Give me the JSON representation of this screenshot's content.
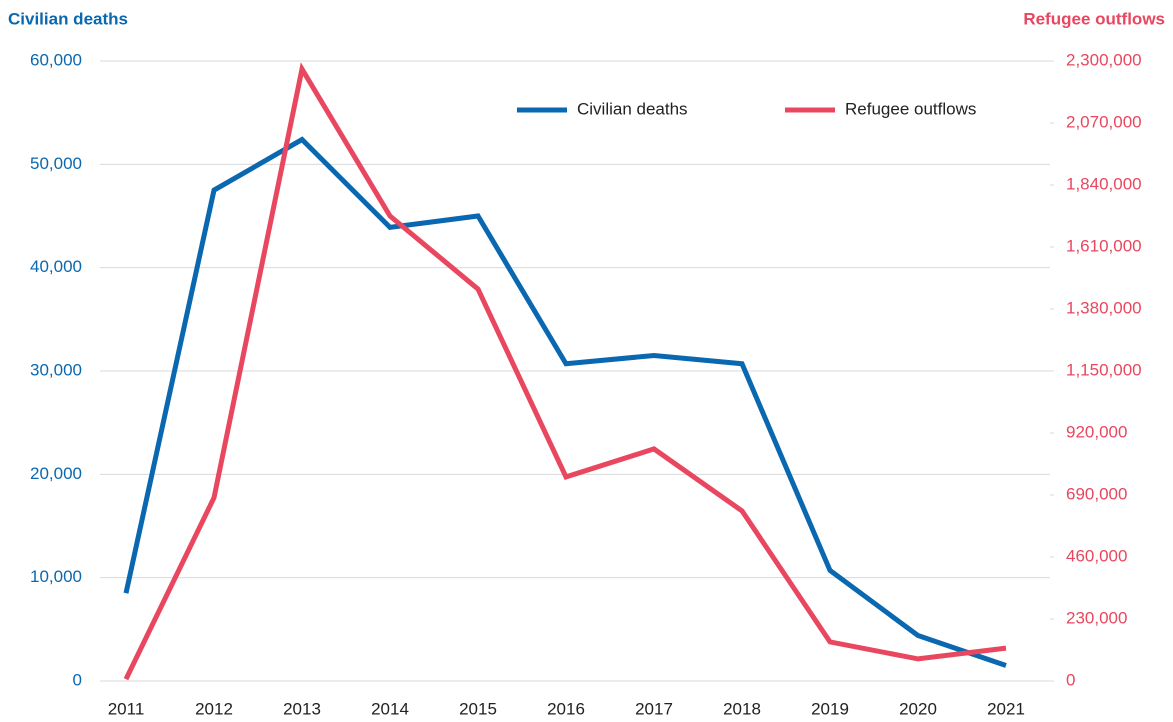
{
  "chart_data": {
    "type": "line",
    "y_axis_title": "Civilian deaths",
    "y2_axis_title": "Refugee outflows",
    "categories": [
      "2011",
      "2012",
      "2013",
      "2014",
      "2015",
      "2016",
      "2017",
      "2018",
      "2019",
      "2020",
      "2021"
    ],
    "series": [
      {
        "name": "Civilian deaths",
        "color": "#0a68b0",
        "values": [
          8500,
          47500,
          52400,
          43900,
          45000,
          30700,
          31500,
          30700,
          10700,
          4400,
          1500
        ]
      },
      {
        "name": "Refugee outflows",
        "color": "#e8475f",
        "axis": "y2",
        "values": [
          7000,
          680000,
          2270000,
          1725000,
          1454000,
          757000,
          861000,
          631000,
          145000,
          82000,
          122000
        ]
      }
    ],
    "ylim": [
      0,
      60000
    ],
    "yticks": [
      0,
      {
        "value": 10000,
        "label": "10,000"
      },
      {
        "value": 20000,
        "label": "20,000"
      },
      {
        "value": 30000,
        "label": "30,000"
      },
      {
        "value": 40000,
        "label": "40,000"
      },
      {
        "value": 50000,
        "label": "50,000"
      },
      {
        "value": 60000,
        "label": "60,000"
      }
    ],
    "y2lim": [
      0,
      2300000
    ],
    "y2ticks": [
      0,
      {
        "value": 230000,
        "label": "230,000"
      },
      {
        "value": 460000,
        "label": "460,000"
      },
      {
        "value": 690000,
        "label": "690,000"
      },
      {
        "value": 920000,
        "label": "920,000"
      },
      {
        "value": 1150000,
        "label": "1,150,000"
      },
      {
        "value": 1380000,
        "label": "1,380,000"
      },
      {
        "value": 1610000,
        "label": "1,610,000"
      },
      {
        "value": 1840000,
        "label": "1,840,000"
      },
      {
        "value": 2070000,
        "label": "2,070,000"
      },
      {
        "value": 2300000,
        "label": "2,300,000"
      }
    ],
    "grid": true,
    "legend": "top-right"
  }
}
